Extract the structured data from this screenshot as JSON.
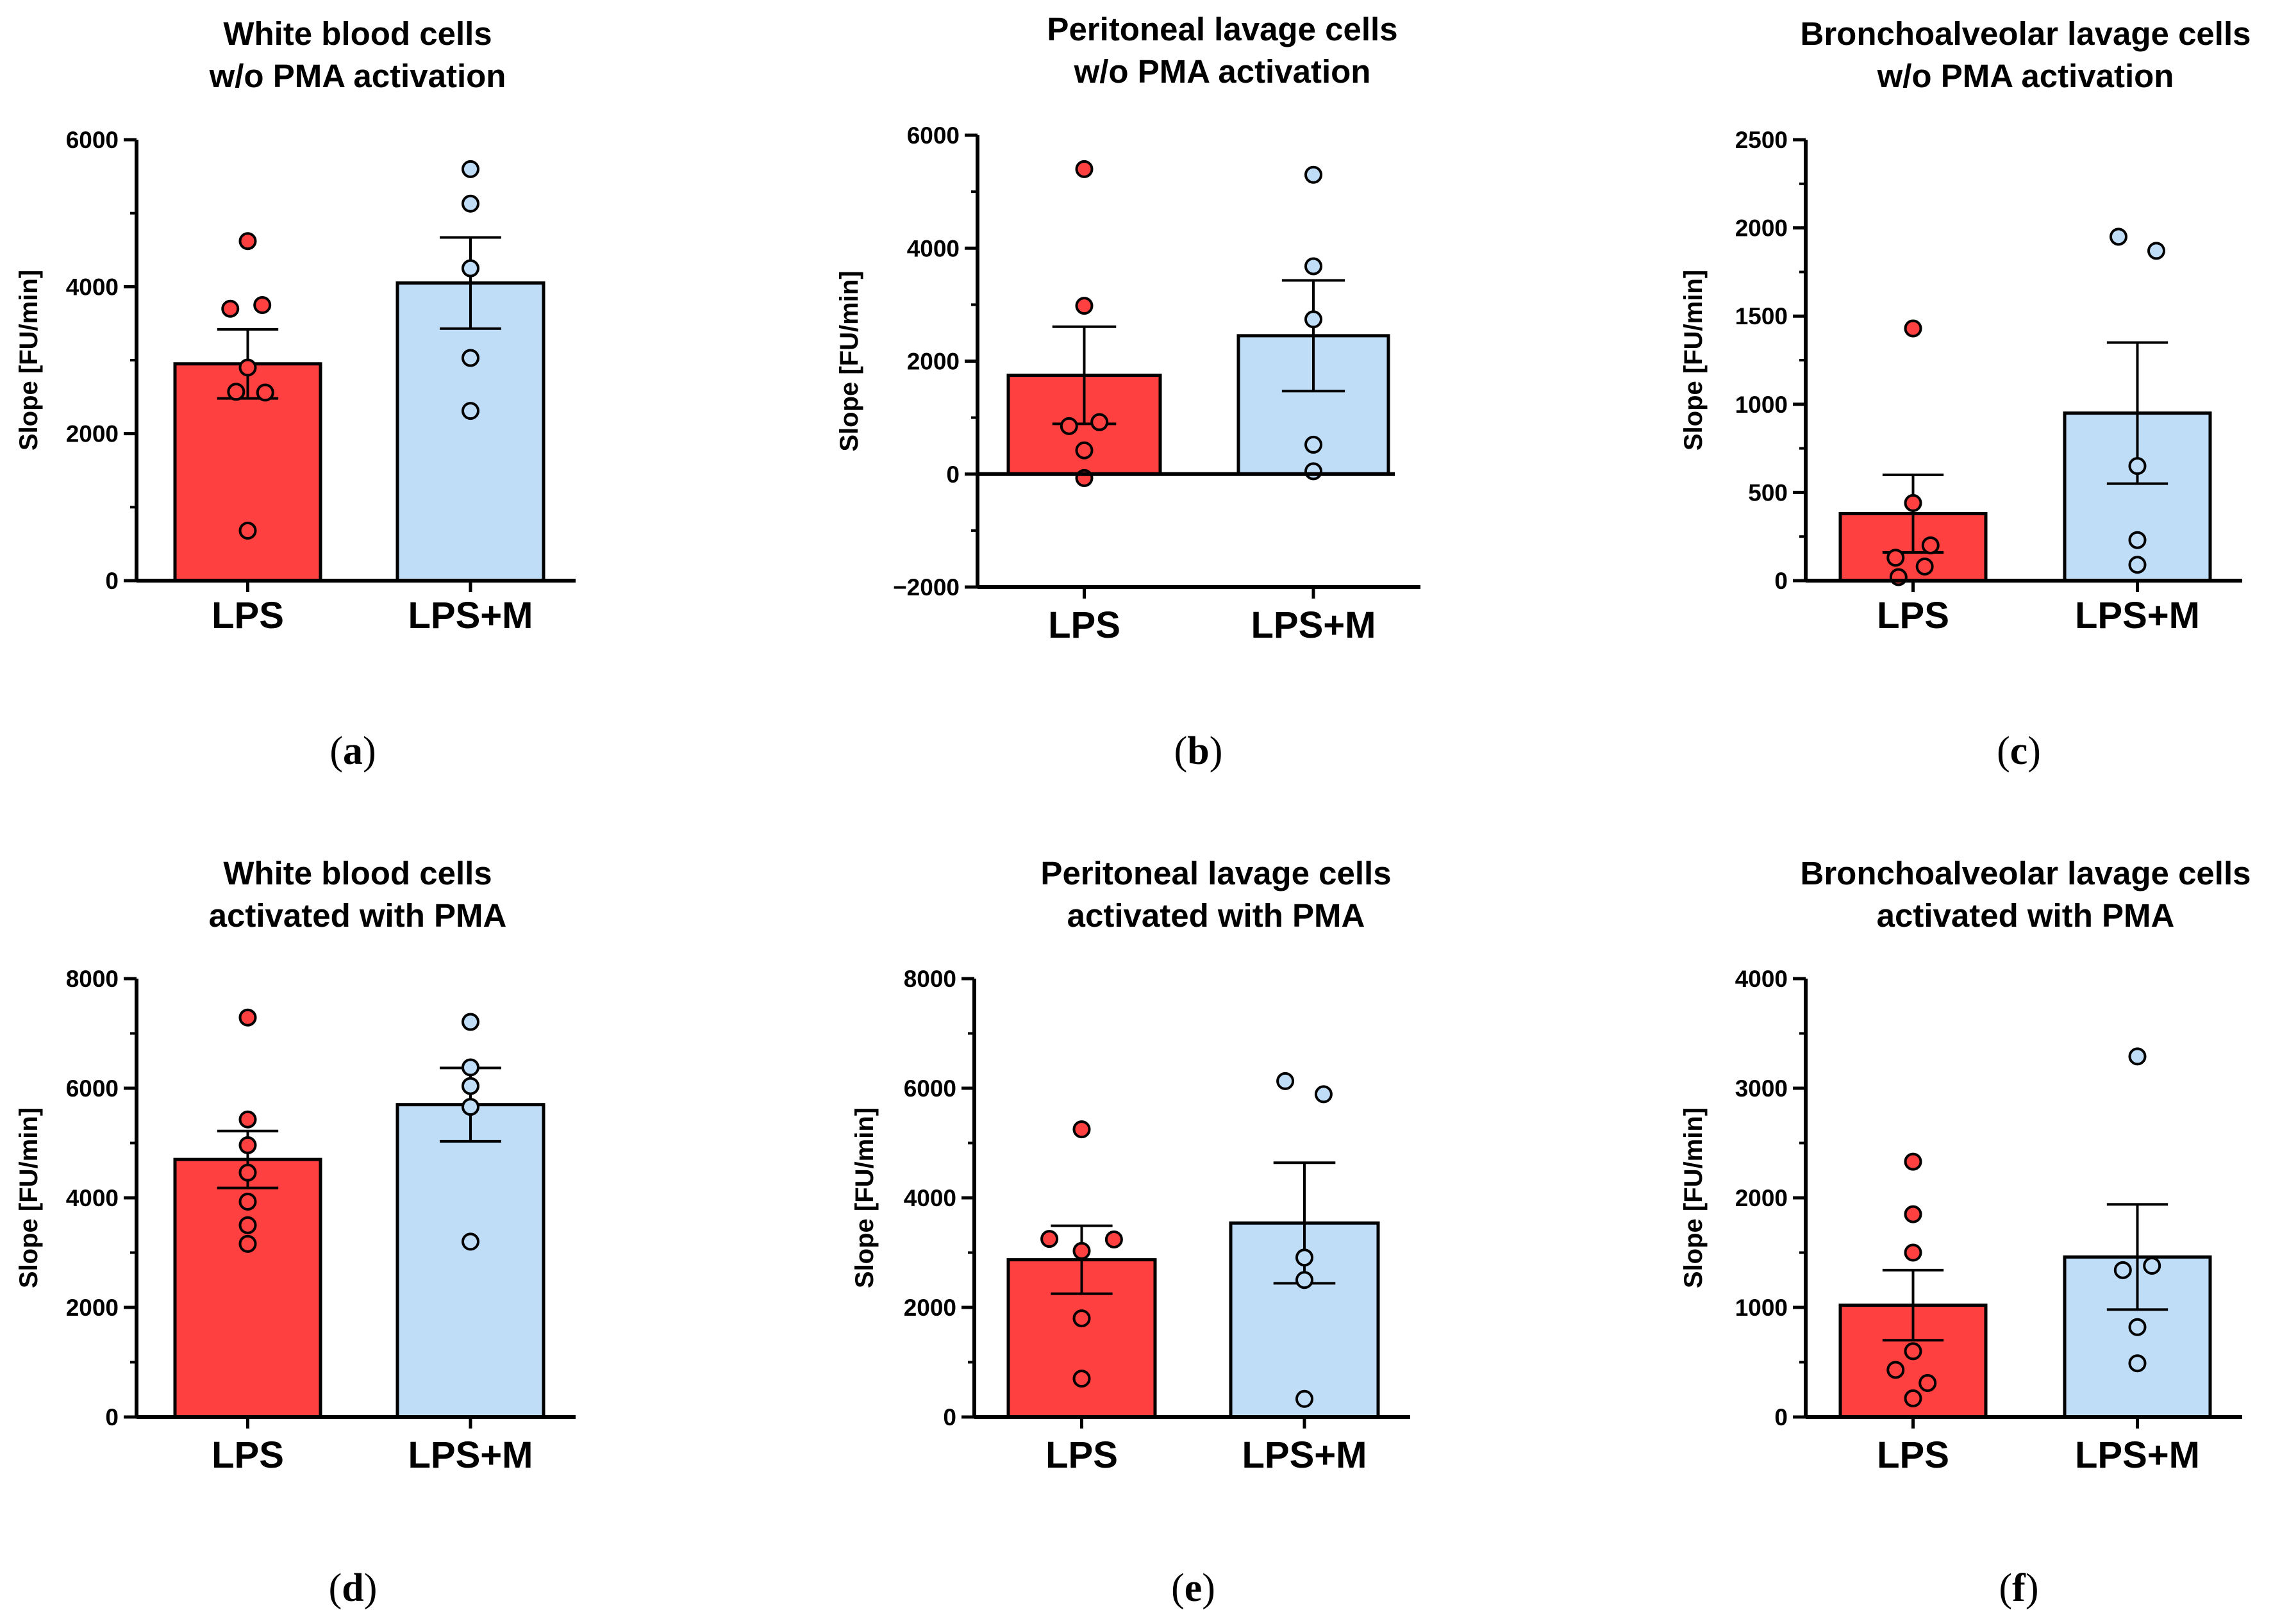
{
  "colors": {
    "lps": "#ff4040",
    "lpsm": "#c0ddf8",
    "stroke": "#000000"
  },
  "chart_data": [
    {
      "id": "a",
      "type": "bar",
      "panel_label": "a",
      "title_lines": [
        "White blood cells",
        "w/o PMA activation"
      ],
      "ylabel": "Slope [FU/min]",
      "categories": [
        "LPS",
        "LPS+M"
      ],
      "ylim": [
        0,
        6000
      ],
      "yticks": [
        0,
        2000,
        4000,
        6000
      ],
      "minor_step": 1000,
      "values": [
        2950,
        4050
      ],
      "errors": [
        470,
        620
      ],
      "points": [
        [
          {
            "dx": 0,
            "y": 4620
          },
          {
            "dx": -0.12,
            "y": 3700
          },
          {
            "dx": 0.1,
            "y": 3750
          },
          {
            "dx": 0,
            "y": 2900
          },
          {
            "dx": -0.08,
            "y": 2570
          },
          {
            "dx": 0.12,
            "y": 2560
          },
          {
            "dx": 0,
            "y": 680
          }
        ],
        [
          {
            "dx": 0,
            "y": 5600
          },
          {
            "dx": 0,
            "y": 5130
          },
          {
            "dx": 0,
            "y": 4250
          },
          {
            "dx": 0,
            "y": 3030
          },
          {
            "dx": 0,
            "y": 2310
          }
        ]
      ],
      "grid": false,
      "legend": "none"
    },
    {
      "id": "b",
      "type": "bar",
      "panel_label": "b",
      "title_lines": [
        "Peritoneal lavage cells",
        "w/o PMA activation"
      ],
      "ylabel": "Slope [FU/min]",
      "categories": [
        "LPS",
        "LPS+M"
      ],
      "ylim": [
        -2000,
        6000
      ],
      "yticks": [
        -2000,
        0,
        2000,
        4000,
        6000
      ],
      "minor_step": 1000,
      "values": [
        1750,
        2450
      ],
      "errors": [
        860,
        980
      ],
      "points": [
        [
          {
            "dx": 0,
            "y": 5400
          },
          {
            "dx": 0,
            "y": 2980
          },
          {
            "dx": -0.1,
            "y": 850
          },
          {
            "dx": 0.1,
            "y": 920
          },
          {
            "dx": 0,
            "y": 420
          },
          {
            "dx": 0,
            "y": -70
          }
        ],
        [
          {
            "dx": 0,
            "y": 5300
          },
          {
            "dx": 0,
            "y": 3680
          },
          {
            "dx": 0,
            "y": 2740
          },
          {
            "dx": 0,
            "y": 520
          },
          {
            "dx": 0,
            "y": 50
          }
        ]
      ],
      "grid": false,
      "legend": "none"
    },
    {
      "id": "c",
      "type": "bar",
      "panel_label": "c",
      "title_lines": [
        "Bronchoalveolar lavage cells",
        "w/o PMA activation"
      ],
      "ylabel": "Slope [FU/min]",
      "categories": [
        "LPS",
        "LPS+M"
      ],
      "ylim": [
        0,
        2500
      ],
      "yticks": [
        0,
        500,
        1000,
        1500,
        2000,
        2500
      ],
      "minor_step": 250,
      "values": [
        380,
        950
      ],
      "errors": [
        220,
        400
      ],
      "points": [
        [
          {
            "dx": 0,
            "y": 1430
          },
          {
            "dx": 0,
            "y": 440
          },
          {
            "dx": -0.12,
            "y": 130
          },
          {
            "dx": 0.12,
            "y": 200
          },
          {
            "dx": 0.08,
            "y": 80
          },
          {
            "dx": -0.1,
            "y": 20
          }
        ],
        [
          {
            "dx": -0.13,
            "y": 1950
          },
          {
            "dx": 0.13,
            "y": 1870
          },
          {
            "dx": 0,
            "y": 650
          },
          {
            "dx": 0,
            "y": 230
          },
          {
            "dx": 0,
            "y": 90
          }
        ]
      ],
      "grid": false,
      "legend": "none"
    },
    {
      "id": "d",
      "type": "bar",
      "panel_label": "d",
      "title_lines": [
        "White blood cells",
        "activated with PMA"
      ],
      "ylabel": "Slope [FU/min]",
      "categories": [
        "LPS",
        "LPS+M"
      ],
      "ylim": [
        0,
        8000
      ],
      "yticks": [
        0,
        2000,
        4000,
        6000,
        8000
      ],
      "minor_step": 1000,
      "values": [
        4700,
        5700
      ],
      "errors": [
        520,
        670
      ],
      "points": [
        [
          {
            "dx": 0,
            "y": 7290
          },
          {
            "dx": 0,
            "y": 5430
          },
          {
            "dx": 0,
            "y": 4960
          },
          {
            "dx": 0,
            "y": 4460
          },
          {
            "dx": 0,
            "y": 3930
          },
          {
            "dx": 0,
            "y": 3500
          },
          {
            "dx": 0,
            "y": 3160
          }
        ],
        [
          {
            "dx": 0,
            "y": 7210
          },
          {
            "dx": 0,
            "y": 6380
          },
          {
            "dx": 0,
            "y": 6040
          },
          {
            "dx": 0,
            "y": 5660
          },
          {
            "dx": 0,
            "y": 3200
          }
        ]
      ],
      "grid": false,
      "legend": "none"
    },
    {
      "id": "e",
      "type": "bar",
      "panel_label": "e",
      "title_lines": [
        "Peritoneal lavage cells",
        "activated with PMA"
      ],
      "ylabel": "Slope [FU/min]",
      "categories": [
        "LPS",
        "LPS+M"
      ],
      "ylim": [
        0,
        8000
      ],
      "yticks": [
        0,
        2000,
        4000,
        6000,
        8000
      ],
      "minor_step": 1000,
      "values": [
        2870,
        3540
      ],
      "errors": [
        620,
        1100
      ],
      "points": [
        [
          {
            "dx": 0,
            "y": 5250
          },
          {
            "dx": -0.22,
            "y": 3250
          },
          {
            "dx": 0.22,
            "y": 3240
          },
          {
            "dx": 0,
            "y": 3030
          },
          {
            "dx": 0,
            "y": 1800
          },
          {
            "dx": 0,
            "y": 700
          }
        ],
        [
          {
            "dx": -0.13,
            "y": 6130
          },
          {
            "dx": 0.13,
            "y": 5890
          },
          {
            "dx": 0,
            "y": 2910
          },
          {
            "dx": 0,
            "y": 2500
          },
          {
            "dx": 0,
            "y": 330
          }
        ]
      ],
      "grid": false,
      "legend": "none"
    },
    {
      "id": "f",
      "type": "bar",
      "panel_label": "f",
      "title_lines": [
        "Bronchoalveolar lavage cells",
        "activated with PMA"
      ],
      "ylabel": "Slope [FU/min]",
      "categories": [
        "LPS",
        "LPS+M"
      ],
      "ylim": [
        0,
        4000
      ],
      "yticks": [
        0,
        1000,
        2000,
        3000,
        4000
      ],
      "minor_step": 500,
      "values": [
        1020,
        1460
      ],
      "errors": [
        320,
        480
      ],
      "points": [
        [
          {
            "dx": 0,
            "y": 2330
          },
          {
            "dx": 0,
            "y": 1850
          },
          {
            "dx": 0,
            "y": 1500
          },
          {
            "dx": -0.12,
            "y": 430
          },
          {
            "dx": 0,
            "y": 600
          },
          {
            "dx": 0.1,
            "y": 310
          },
          {
            "dx": 0,
            "y": 170
          }
        ],
        [
          {
            "dx": 0,
            "y": 3290
          },
          {
            "dx": -0.1,
            "y": 1340
          },
          {
            "dx": 0.1,
            "y": 1380
          },
          {
            "dx": 0,
            "y": 820
          },
          {
            "dx": 0,
            "y": 490
          }
        ]
      ],
      "grid": false,
      "legend": "none"
    }
  ]
}
